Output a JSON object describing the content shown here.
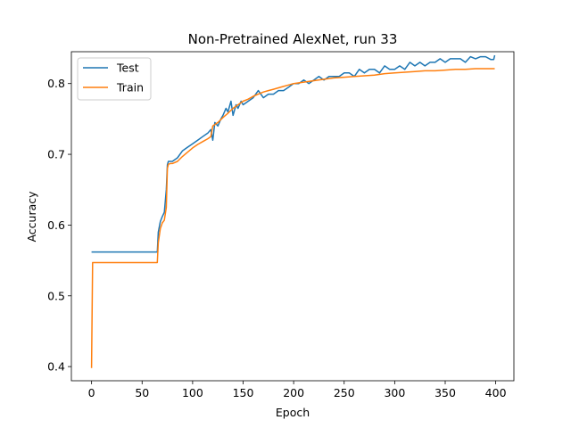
{
  "chart_data": {
    "type": "line",
    "title": "Non-Pretrained AlexNet, run 33",
    "xlabel": "Epoch",
    "ylabel": "Accuracy",
    "xlim": [
      -20,
      418
    ],
    "ylim": [
      0.38,
      0.845
    ],
    "xticks": [
      0,
      50,
      100,
      150,
      200,
      250,
      300,
      350,
      400
    ],
    "yticks": [
      0.4,
      0.5,
      0.6,
      0.7,
      0.8
    ],
    "grid": false,
    "legend_position": "upper left",
    "series": [
      {
        "name": "Test",
        "color": "#1f77b4",
        "x": [
          0,
          1,
          10,
          20,
          30,
          40,
          50,
          60,
          65,
          66,
          68,
          70,
          72,
          74,
          75,
          76,
          78,
          80,
          85,
          90,
          95,
          100,
          105,
          110,
          115,
          118,
          120,
          122,
          125,
          128,
          130,
          133,
          135,
          138,
          140,
          143,
          145,
          148,
          150,
          155,
          160,
          165,
          170,
          175,
          180,
          185,
          190,
          195,
          200,
          205,
          210,
          215,
          220,
          225,
          230,
          235,
          240,
          245,
          250,
          255,
          260,
          265,
          270,
          275,
          280,
          285,
          290,
          295,
          300,
          305,
          310,
          315,
          320,
          325,
          330,
          335,
          340,
          345,
          350,
          355,
          360,
          365,
          370,
          375,
          380,
          385,
          390,
          395,
          398,
          399
        ],
        "y": [
          0.562,
          0.562,
          0.562,
          0.562,
          0.562,
          0.562,
          0.562,
          0.562,
          0.562,
          0.59,
          0.605,
          0.612,
          0.618,
          0.65,
          0.685,
          0.69,
          0.69,
          0.69,
          0.695,
          0.705,
          0.71,
          0.715,
          0.72,
          0.725,
          0.73,
          0.735,
          0.72,
          0.745,
          0.74,
          0.75,
          0.755,
          0.765,
          0.76,
          0.775,
          0.755,
          0.77,
          0.765,
          0.775,
          0.77,
          0.775,
          0.78,
          0.79,
          0.78,
          0.785,
          0.785,
          0.79,
          0.79,
          0.795,
          0.8,
          0.8,
          0.805,
          0.8,
          0.805,
          0.81,
          0.805,
          0.81,
          0.81,
          0.81,
          0.815,
          0.815,
          0.81,
          0.82,
          0.815,
          0.82,
          0.82,
          0.815,
          0.825,
          0.82,
          0.82,
          0.825,
          0.82,
          0.83,
          0.825,
          0.83,
          0.825,
          0.83,
          0.83,
          0.835,
          0.83,
          0.835,
          0.835,
          0.835,
          0.83,
          0.838,
          0.835,
          0.838,
          0.838,
          0.834,
          0.834,
          0.84
        ]
      },
      {
        "name": "Train",
        "color": "#ff7f0e",
        "x": [
          0,
          1,
          10,
          20,
          30,
          40,
          50,
          60,
          65,
          66,
          68,
          70,
          72,
          74,
          75,
          76,
          78,
          80,
          85,
          90,
          95,
          100,
          105,
          110,
          115,
          118,
          120,
          125,
          130,
          135,
          140,
          145,
          150,
          155,
          160,
          165,
          170,
          175,
          180,
          185,
          190,
          195,
          200,
          210,
          220,
          230,
          240,
          250,
          260,
          270,
          280,
          290,
          300,
          310,
          320,
          330,
          340,
          350,
          360,
          370,
          380,
          390,
          399
        ],
        "y": [
          0.398,
          0.547,
          0.547,
          0.547,
          0.547,
          0.547,
          0.547,
          0.547,
          0.547,
          0.575,
          0.595,
          0.603,
          0.607,
          0.625,
          0.68,
          0.686,
          0.687,
          0.687,
          0.69,
          0.697,
          0.703,
          0.709,
          0.714,
          0.718,
          0.722,
          0.725,
          0.74,
          0.745,
          0.752,
          0.758,
          0.765,
          0.77,
          0.775,
          0.778,
          0.782,
          0.785,
          0.788,
          0.79,
          0.792,
          0.794,
          0.796,
          0.798,
          0.8,
          0.802,
          0.804,
          0.806,
          0.808,
          0.809,
          0.81,
          0.811,
          0.812,
          0.814,
          0.815,
          0.816,
          0.817,
          0.818,
          0.818,
          0.819,
          0.82,
          0.82,
          0.821,
          0.821,
          0.821
        ]
      }
    ]
  }
}
